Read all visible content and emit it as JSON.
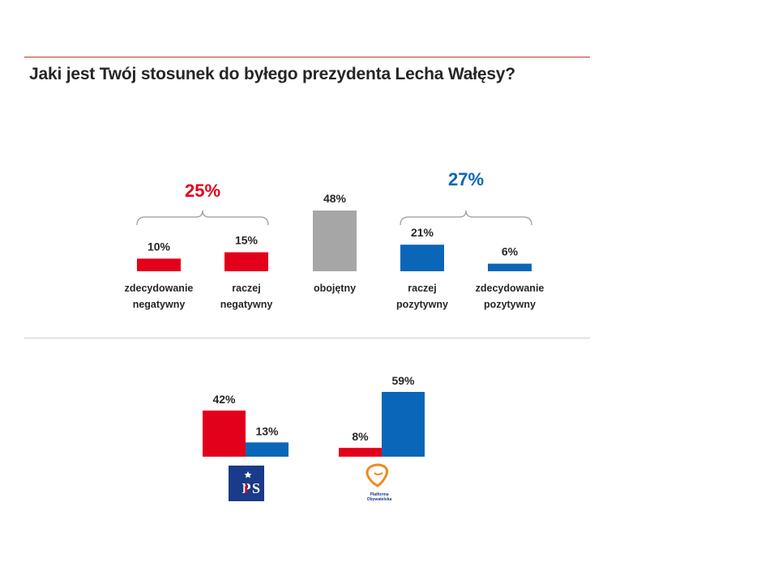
{
  "title": "Jaki jest Twój stosunek do byłego prezydenta Lecha Wałęsy?",
  "chart_data": [
    {
      "type": "bar",
      "categories": [
        [
          "zdecydowanie",
          "negatywny"
        ],
        [
          "raczej",
          "negatywny"
        ],
        [
          "obojętny"
        ],
        [
          "raczej",
          "pozytywny"
        ],
        [
          "zdecydowanie",
          "pozytywny"
        ]
      ],
      "values": [
        10,
        15,
        48,
        21,
        6
      ],
      "value_labels": [
        "10%",
        "15%",
        "48%",
        "21%",
        "6%"
      ],
      "colors": [
        "#e3001b",
        "#e3001b",
        "#a6a6a6",
        "#0a66b8",
        "#0a66b8"
      ],
      "groups": [
        {
          "label": "25%",
          "from": 0,
          "to": 1,
          "color": "#e3001b"
        },
        {
          "label": "27%",
          "from": 3,
          "to": 4,
          "color": "#0a66b8"
        }
      ]
    },
    {
      "type": "bar",
      "groups": [
        {
          "logo": "pis-logo",
          "logo_text": "PiS",
          "values": [
            42,
            13
          ],
          "value_labels": [
            "42%",
            "13%"
          ]
        },
        {
          "logo": "platforma-obywatelska-logo",
          "logo_text": "Platforma Obywatelska",
          "values": [
            8,
            59
          ],
          "value_labels": [
            "8%",
            "59%"
          ]
        }
      ],
      "colors": [
        "#e3001b",
        "#0a66b8"
      ]
    }
  ]
}
